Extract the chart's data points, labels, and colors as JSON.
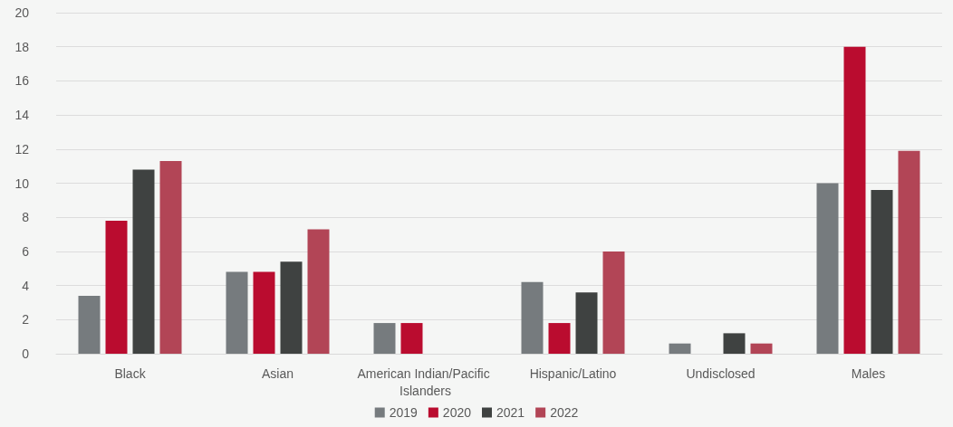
{
  "chart_data": {
    "type": "bar",
    "categories": [
      "Black",
      "Asian",
      "American Indian/Pacific Islanders",
      "Hispanic/Latino",
      "Undisclosed",
      "Males"
    ],
    "series": [
      {
        "name": "2019",
        "color": "#767b7e",
        "values": [
          3.4,
          4.8,
          1.8,
          4.2,
          0.6,
          10
        ]
      },
      {
        "name": "2020",
        "color": "#ba0c2f",
        "values": [
          7.8,
          4.8,
          1.8,
          1.8,
          null,
          18
        ]
      },
      {
        "name": "2021",
        "color": "#3f4241",
        "values": [
          10.8,
          5.4,
          null,
          3.6,
          1.2,
          9.6
        ]
      },
      {
        "name": "2022",
        "color": "#b24556",
        "values": [
          11.3,
          7.3,
          null,
          6.0,
          0.6,
          11.9
        ]
      }
    ],
    "ylim": [
      0,
      20
    ],
    "yticks": [
      0,
      2,
      4,
      6,
      8,
      10,
      12,
      14,
      16,
      18,
      20
    ],
    "grid": "y",
    "legend": "bottom"
  }
}
